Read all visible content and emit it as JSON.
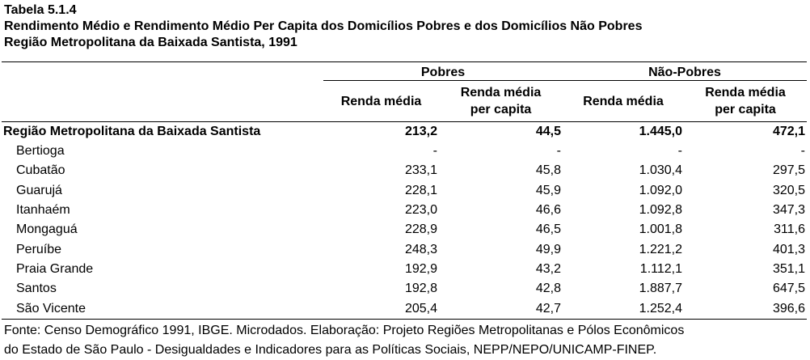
{
  "header": {
    "table_number": "Tabela 5.1.4",
    "title": "Rendimento Médio e Rendimento Médio Per Capita dos Domicílios Pobres e dos Domicílios Não Pobres",
    "subtitle": "Região Metropolitana da Baixada Santista, 1991"
  },
  "table": {
    "groups": [
      "Pobres",
      "Não-Pobres"
    ],
    "subheaders": {
      "renda_media": "Renda média",
      "per_capita_line1": "Renda média",
      "per_capita_line2": "per capita"
    },
    "total": {
      "name": "Região Metropolitana da Baixada Santista",
      "values": [
        "213,2",
        "44,5",
        "1.445,0",
        "472,1"
      ]
    },
    "rows": [
      {
        "name": "Bertioga",
        "values": [
          "-",
          "-",
          "-",
          "-"
        ]
      },
      {
        "name": "Cubatão",
        "values": [
          "233,1",
          "45,8",
          "1.030,4",
          "297,5"
        ]
      },
      {
        "name": "Guarujá",
        "values": [
          "228,1",
          "45,9",
          "1.092,0",
          "320,5"
        ]
      },
      {
        "name": "Itanhaém",
        "values": [
          "223,0",
          "46,6",
          "1.092,8",
          "347,3"
        ]
      },
      {
        "name": "Mongaguá",
        "values": [
          "228,9",
          "46,5",
          "1.001,8",
          "311,6"
        ]
      },
      {
        "name": "Peruíbe",
        "values": [
          "248,3",
          "49,9",
          "1.221,2",
          "401,3"
        ]
      },
      {
        "name": "Praia Grande",
        "values": [
          "192,9",
          "43,2",
          "1.112,1",
          "351,1"
        ]
      },
      {
        "name": "Santos",
        "values": [
          "192,8",
          "42,8",
          "1.887,7",
          "647,5"
        ]
      },
      {
        "name": "São Vicente",
        "values": [
          "205,4",
          "42,7",
          "1.252,4",
          "396,6"
        ]
      }
    ]
  },
  "footer": {
    "source_line1": "Fonte: Censo Demográfico 1991, IBGE. Microdados. Elaboração: Projeto Regiões Metropolitanas e Pólos Econômicos",
    "source_line2": "do Estado de São Paulo - Desigualdades e Indicadores para as Políticas Sociais, NEPP/NEPO/UNICAMP-FINEP."
  }
}
